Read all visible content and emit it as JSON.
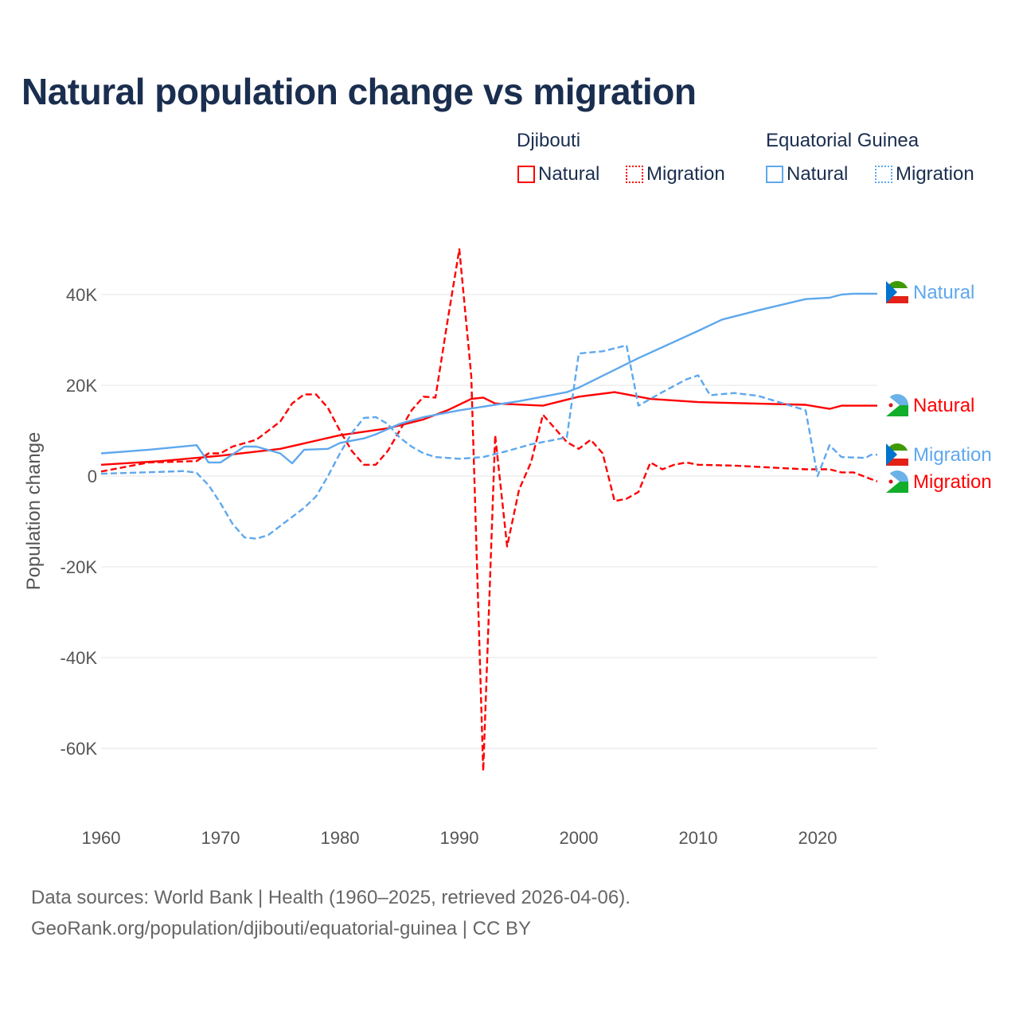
{
  "title": "Natural population change vs migration",
  "legend": {
    "groups": [
      {
        "name": "Djibouti",
        "color": "#ff0000",
        "items": [
          "Natural",
          "Migration"
        ]
      },
      {
        "name": "Equatorial Guinea",
        "color": "#5ea8ee",
        "items": [
          "Natural",
          "Migration"
        ]
      }
    ]
  },
  "footer": {
    "line1": "Data sources: World Bank | Health (1960–2025, retrieved 2026-04-06).",
    "line2": "GeoRank.org/population/djibouti/equatorial-guinea | CC BY"
  },
  "chart_data": {
    "type": "line",
    "title": "Natural population change vs migration",
    "xlabel": "",
    "ylabel": "Population change",
    "xlim": [
      1960,
      2025
    ],
    "ylim": [
      -70000,
      50000
    ],
    "xticks": [
      1960,
      1970,
      1980,
      1990,
      2000,
      2010,
      2020
    ],
    "xtick_labels": [
      "1960",
      "1970",
      "1980",
      "1990",
      "2000",
      "2010",
      "2020"
    ],
    "yticks": [
      40000,
      20000,
      0,
      -20000,
      -40000,
      -60000
    ],
    "ytick_labels": [
      "40K",
      "20K",
      "0",
      "-20K",
      "-40K",
      "-60K"
    ],
    "grid": true,
    "series": [
      {
        "name": "Djibouti Natural",
        "end_label": "Natural",
        "color": "#ff0000",
        "dash": false,
        "points": [
          [
            1960,
            2500
          ],
          [
            1965,
            3300
          ],
          [
            1970,
            4500
          ],
          [
            1975,
            6000
          ],
          [
            1980,
            9000
          ],
          [
            1984,
            10500
          ],
          [
            1987,
            12500
          ],
          [
            1989,
            14500
          ],
          [
            1991,
            17000
          ],
          [
            1992,
            17300
          ],
          [
            1993,
            16000
          ],
          [
            1997,
            15500
          ],
          [
            2000,
            17500
          ],
          [
            2003,
            18500
          ],
          [
            2006,
            17000
          ],
          [
            2010,
            16300
          ],
          [
            2019,
            15700
          ],
          [
            2021,
            14800
          ],
          [
            2022,
            15500
          ],
          [
            2023,
            15500
          ],
          [
            2025,
            15500
          ]
        ]
      },
      {
        "name": "Djibouti Migration",
        "end_label": "Migration",
        "color": "#ff0000",
        "dash": true,
        "points": [
          [
            1960,
            1000
          ],
          [
            1962,
            2000
          ],
          [
            1964,
            3000
          ],
          [
            1968,
            3300
          ],
          [
            1969,
            5000
          ],
          [
            1970,
            5000
          ],
          [
            1971,
            6500
          ],
          [
            1973,
            8000
          ],
          [
            1975,
            12000
          ],
          [
            1976,
            16000
          ],
          [
            1977,
            18000
          ],
          [
            1978,
            18000
          ],
          [
            1979,
            15000
          ],
          [
            1980,
            10000
          ],
          [
            1981,
            5500
          ],
          [
            1982,
            2500
          ],
          [
            1983,
            2500
          ],
          [
            1984,
            5500
          ],
          [
            1985,
            10000
          ],
          [
            1986,
            14500
          ],
          [
            1987,
            17500
          ],
          [
            1988,
            17300
          ],
          [
            1989,
            34000
          ],
          [
            1990,
            50000
          ],
          [
            1991,
            22000
          ],
          [
            1992,
            -65000
          ],
          [
            1993,
            9000
          ],
          [
            1994,
            -15500
          ],
          [
            1995,
            -3000
          ],
          [
            1996,
            3000
          ],
          [
            1997,
            13500
          ],
          [
            1998,
            10500
          ],
          [
            1999,
            7500
          ],
          [
            2000,
            6000
          ],
          [
            2001,
            8000
          ],
          [
            2002,
            5000
          ],
          [
            2003,
            -5500
          ],
          [
            2004,
            -5000
          ],
          [
            2005,
            -3500
          ],
          [
            2006,
            3000
          ],
          [
            2007,
            1500
          ],
          [
            2008,
            2500
          ],
          [
            2009,
            3000
          ],
          [
            2010,
            2500
          ],
          [
            2013,
            2300
          ],
          [
            2019,
            1500
          ],
          [
            2021,
            1500
          ],
          [
            2022,
            800
          ],
          [
            2023,
            800
          ],
          [
            2024,
            -200
          ],
          [
            2025,
            -1200
          ]
        ]
      },
      {
        "name": "Equatorial Guinea Natural",
        "end_label": "Natural",
        "color": "#5ea8ee",
        "dash": false,
        "points": [
          [
            1960,
            5000
          ],
          [
            1964,
            5800
          ],
          [
            1968,
            6800
          ],
          [
            1969,
            3000
          ],
          [
            1970,
            3000
          ],
          [
            1972,
            6500
          ],
          [
            1973,
            6500
          ],
          [
            1975,
            5000
          ],
          [
            1976,
            2800
          ],
          [
            1977,
            5800
          ],
          [
            1979,
            6000
          ],
          [
            1980,
            7300
          ],
          [
            1982,
            8300
          ],
          [
            1983,
            9200
          ],
          [
            1985,
            11500
          ],
          [
            1987,
            13000
          ],
          [
            1990,
            14500
          ],
          [
            1995,
            16500
          ],
          [
            1999,
            18500
          ],
          [
            2000,
            19500
          ],
          [
            2005,
            26000
          ],
          [
            2010,
            32000
          ],
          [
            2012,
            34500
          ],
          [
            2015,
            36500
          ],
          [
            2019,
            39000
          ],
          [
            2021,
            39300
          ],
          [
            2022,
            40000
          ],
          [
            2023,
            40200
          ],
          [
            2025,
            40200
          ]
        ]
      },
      {
        "name": "Equatorial Guinea Migration",
        "end_label": "Migration",
        "color": "#5ea8ee",
        "dash": true,
        "points": [
          [
            1960,
            500
          ],
          [
            1967,
            1100
          ],
          [
            1968,
            700
          ],
          [
            1969,
            -2000
          ],
          [
            1970,
            -6000
          ],
          [
            1971,
            -10500
          ],
          [
            1972,
            -13500
          ],
          [
            1973,
            -13800
          ],
          [
            1974,
            -13000
          ],
          [
            1975,
            -11000
          ],
          [
            1977,
            -7000
          ],
          [
            1978,
            -4500
          ],
          [
            1979,
            0
          ],
          [
            1980,
            5000
          ],
          [
            1981,
            9500
          ],
          [
            1982,
            12800
          ],
          [
            1983,
            13000
          ],
          [
            1984,
            11500
          ],
          [
            1985,
            8500
          ],
          [
            1986,
            6500
          ],
          [
            1987,
            5000
          ],
          [
            1988,
            4200
          ],
          [
            1990,
            3800
          ],
          [
            1992,
            4200
          ],
          [
            1994,
            5500
          ],
          [
            1996,
            7000
          ],
          [
            1998,
            8000
          ],
          [
            1999,
            8500
          ],
          [
            2000,
            27000
          ],
          [
            2002,
            27500
          ],
          [
            2004,
            28800
          ],
          [
            2005,
            15500
          ],
          [
            2007,
            18500
          ],
          [
            2009,
            21300
          ],
          [
            2010,
            22200
          ],
          [
            2011,
            17800
          ],
          [
            2013,
            18300
          ],
          [
            2015,
            17700
          ],
          [
            2018,
            15300
          ],
          [
            2019,
            14500
          ],
          [
            2020,
            0
          ],
          [
            2021,
            6800
          ],
          [
            2022,
            4200
          ],
          [
            2024,
            4000
          ],
          [
            2024.5,
            4700
          ],
          [
            2025,
            4700
          ]
        ]
      }
    ]
  }
}
